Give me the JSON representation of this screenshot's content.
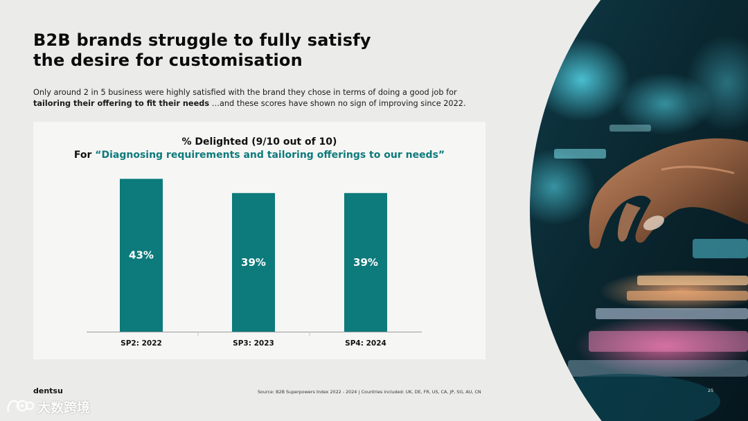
{
  "slide": {
    "title_line1": "B2B brands struggle to fully satisfy",
    "title_line2": "the desire for customisation",
    "subtitle_line1": "Only around 2 in 5 business were highly satisfied with the brand they chose in terms of doing a good job for",
    "subtitle_bold": "tailoring their offering to fit their needs",
    "subtitle_rest": " …and these scores have shown no sign of improving since 2022.",
    "brand": "dentsu",
    "source": "Source: B2B Superpowers Index 2022 - 2024   |    Countries included: UK, DE, FR, US, CA, JP, SG, AU, CN",
    "page_number": "25",
    "watermark_text": "大数跨境"
  },
  "colors": {
    "accent": "#0d7a7b",
    "bar": "#0d7a7b",
    "panel": "#f6f6f5",
    "background": "#ebebea"
  },
  "icons": {
    "watermark_logo": "camera-loop-logo",
    "photo": "hand-typing-keyboard-photo"
  },
  "chart_data": {
    "type": "bar",
    "title_line1": "% Delighted (9/10 out of 10)",
    "title_prefix": "For ",
    "title_highlight": "“Diagnosing requirements and tailoring offerings to our needs”",
    "categories": [
      "SP2: 2022",
      "SP3: 2023",
      "SP4: 2024"
    ],
    "values": [
      43,
      39,
      39
    ],
    "value_labels": [
      "43%",
      "39%",
      "39%"
    ],
    "unit": "%",
    "ylim": [
      0,
      45
    ],
    "grid": false,
    "legend": "none"
  }
}
